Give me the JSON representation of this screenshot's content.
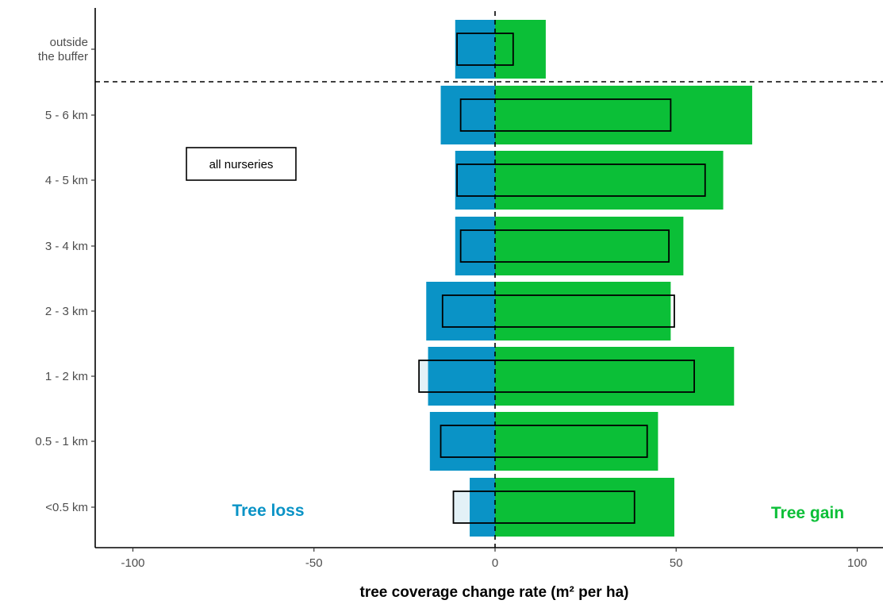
{
  "colors": {
    "loss": "#0a93c6",
    "gain": "#0bbf37",
    "loss_light": "#e3f1f7",
    "axis": "#000000",
    "tick_text": "#4d4d4d"
  },
  "annotations": {
    "box_label": "all nurseries",
    "loss_label": "Tree loss",
    "gain_label": "Tree gain"
  },
  "chart_data": {
    "type": "bar",
    "orientation": "horizontal",
    "title": "",
    "xlabel": "tree coverage change rate (m² per ha)",
    "ylabel": "",
    "xlim": [
      -100,
      100
    ],
    "x_ticks": [
      "-100",
      "-50",
      "0",
      "50",
      "100"
    ],
    "categories": [
      "outside\nthe buffer",
      "5 - 6 km",
      "4 - 5 km",
      "3 - 4 km",
      "2 - 3 km",
      "1 - 2 km",
      "0.5 - 1 km",
      "<0.5 km"
    ],
    "series": [
      {
        "name": "Tree loss",
        "role": "loss",
        "values": [
          -11,
          -15,
          -11,
          -11,
          -19,
          -18.5,
          -18,
          -7
        ]
      },
      {
        "name": "Tree gain",
        "role": "gain",
        "values": [
          14,
          71,
          63,
          52,
          48.5,
          66,
          45,
          49.5
        ]
      }
    ],
    "outlined_series": [
      {
        "name": "all nurseries",
        "loss": [
          -10.5,
          -9.5,
          -10.5,
          -9.5,
          -14.5,
          -21,
          -15,
          -11.5
        ],
        "gain": [
          5,
          48.5,
          58,
          48,
          49.5,
          55,
          42,
          38.5
        ]
      }
    ],
    "reference_lines": {
      "vertical_dashed_at": 0,
      "horizontal_dashed_between": [
        "outside\nthe buffer",
        "5 - 6 km"
      ]
    },
    "grid": false,
    "legend": "none"
  }
}
